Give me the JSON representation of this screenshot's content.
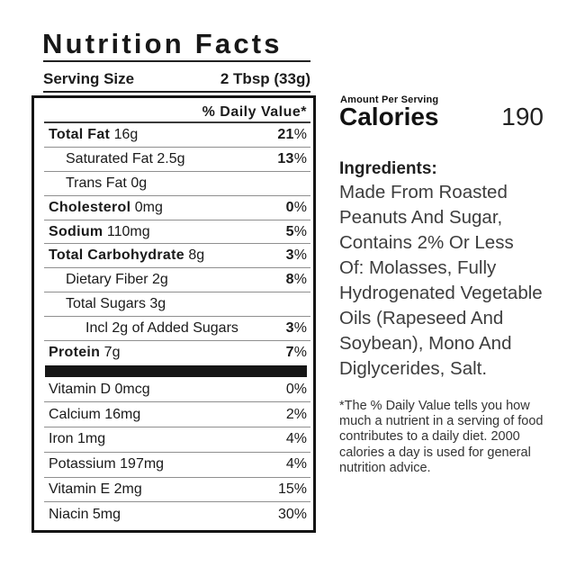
{
  "label": {
    "title": "Nutrition Facts",
    "serving_label": "Serving Size",
    "serving_value": "2 Tbsp (33g)",
    "dv_header": "% Daily Value*",
    "percent_sign": "%",
    "rows_main": [
      {
        "name": "Total Fat",
        "amount": "16g",
        "pct": "21",
        "bold": true,
        "indent": 0,
        "pct_bold": true
      },
      {
        "name": "Saturated Fat",
        "amount": "2.5g",
        "pct": "13",
        "bold": false,
        "indent": 1,
        "pct_bold": true
      },
      {
        "name": "Trans Fat",
        "amount": "0g",
        "pct": "",
        "bold": false,
        "indent": 1,
        "pct_bold": false
      },
      {
        "name": "Cholesterol",
        "amount": "0mg",
        "pct": "0",
        "bold": true,
        "indent": 0,
        "pct_bold": true
      },
      {
        "name": "Sodium",
        "amount": "110mg",
        "pct": "5",
        "bold": true,
        "indent": 0,
        "pct_bold": true
      },
      {
        "name": "Total Carbohydrate",
        "amount": "8g",
        "pct": "3",
        "bold": true,
        "indent": 0,
        "pct_bold": true
      },
      {
        "name": "Dietary Fiber",
        "amount": "2g",
        "pct": "8",
        "bold": false,
        "indent": 1,
        "pct_bold": true
      },
      {
        "name": "Total Sugars",
        "amount": "3g",
        "pct": "",
        "bold": false,
        "indent": 1,
        "pct_bold": false
      },
      {
        "name": "Incl 2g of Added Sugars",
        "amount": "",
        "pct": "3",
        "bold": false,
        "indent": 2,
        "pct_bold": true
      },
      {
        "name": "Protein",
        "amount": "7g",
        "pct": "7",
        "bold": true,
        "indent": 0,
        "pct_bold": true
      }
    ],
    "rows_micro": [
      {
        "name": "Vitamin D",
        "amount": "0mcg",
        "pct": "0"
      },
      {
        "name": "Calcium",
        "amount": "16mg",
        "pct": "2"
      },
      {
        "name": "Iron",
        "amount": "1mg",
        "pct": "4"
      },
      {
        "name": "Potassium",
        "amount": "197mg",
        "pct": "4"
      },
      {
        "name": "Vitamin E",
        "amount": "2mg",
        "pct": "15"
      },
      {
        "name": "Niacin",
        "amount": "5mg",
        "pct": "30"
      }
    ]
  },
  "panel": {
    "amount_per_serving": "Amount Per Serving",
    "calories_label": "Calories",
    "calories_value": "190",
    "ingredients_title": "Ingredients:",
    "ingredients_text": "Made From Roasted\nPeanuts And Sugar,\nContains 2% Or Less\nOf: Molasses, Fully\nHydrogenated Vegetable\nOils (Rapeseed And\nSoybean), Mono And\nDiglycerides, Salt.",
    "footnote": "*The % Daily Value tells you how\nmuch a nutrient in a serving of food\ncontributes to a daily diet. 2000\ncalories a day is used for general\nnutrition advice."
  }
}
